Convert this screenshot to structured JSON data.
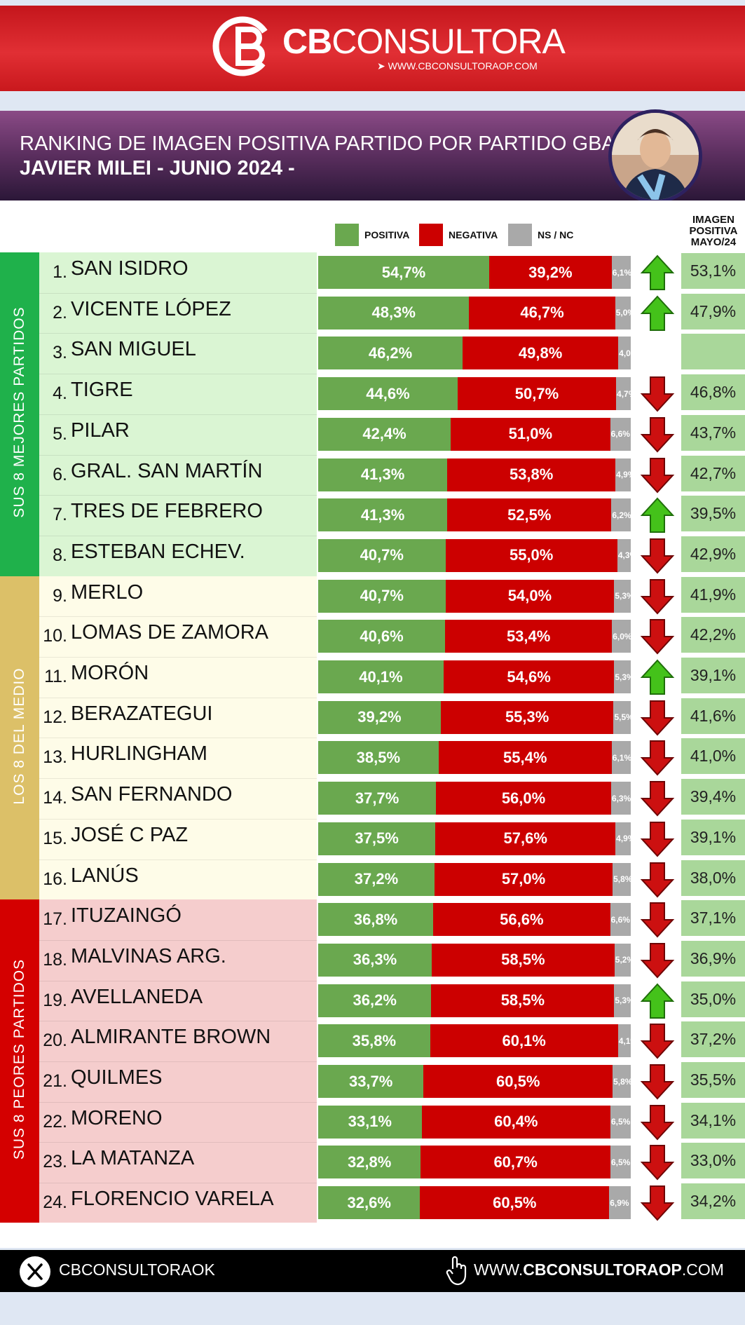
{
  "brand": {
    "logo_cb": "CB",
    "logo_name": "CONSULTORA",
    "url": "WWW.CBCONSULTORAOP.COM",
    "primary_color": "#d62027"
  },
  "title": {
    "line1": "RANKING DE IMAGEN POSITIVA PARTIDO POR PARTIDO GBA",
    "line2": "JAVIER MILEI - JUNIO 2024 -"
  },
  "legend": {
    "positive": "POSITIVA",
    "negative": "NEGATIVA",
    "ns": "NS / NC"
  },
  "may_column_header": [
    "IMAGEN",
    "POSITIVA",
    "MAYO/24"
  ],
  "groups": [
    {
      "label": "SUS 8 MEJORES PARTIDOS",
      "color": "#1fb14b",
      "fill": "#daf5d3"
    },
    {
      "label": "LOS 8 DEL MEDIO",
      "color": "#dcc068",
      "fill": "#fefce8"
    },
    {
      "label": "SUS 8 PEORES PARTIDOS",
      "color": "#d40000",
      "fill": "#f5cdcd"
    }
  ],
  "chart_data": {
    "type": "bar",
    "stacked": true,
    "orientation": "horizontal",
    "title": "RANKING DE IMAGEN POSITIVA PARTIDO POR PARTIDO GBA",
    "series": [
      {
        "name": "POSITIVA",
        "color": "#6aa84f"
      },
      {
        "name": "NEGATIVA",
        "color": "#cc0000"
      },
      {
        "name": "NS / NC",
        "color": "#a9a9a9"
      }
    ],
    "rows": [
      {
        "rank": "1.",
        "name": "SAN ISIDRO",
        "pos": 54.7,
        "neg": 39.2,
        "ns": 6.1,
        "pos_label": "54,7%",
        "neg_label": "39,2%",
        "ns_label": "6,1%",
        "trend": "up",
        "may": "53,1%"
      },
      {
        "rank": "2.",
        "name": "VICENTE LÓPEZ",
        "pos": 48.3,
        "neg": 46.7,
        "ns": 5.0,
        "pos_label": "48,3%",
        "neg_label": "46,7%",
        "ns_label": "5,0%",
        "trend": "up",
        "may": "47,9%"
      },
      {
        "rank": "3.",
        "name": "SAN MIGUEL",
        "pos": 46.2,
        "neg": 49.8,
        "ns": 4.0,
        "pos_label": "46,2%",
        "neg_label": "49,8%",
        "ns_label": "4,0%",
        "trend": "none",
        "may": ""
      },
      {
        "rank": "4.",
        "name": "TIGRE",
        "pos": 44.6,
        "neg": 50.7,
        "ns": 4.7,
        "pos_label": "44,6%",
        "neg_label": "50,7%",
        "ns_label": "4,7%",
        "trend": "down",
        "may": "46,8%"
      },
      {
        "rank": "5.",
        "name": "PILAR",
        "pos": 42.4,
        "neg": 51.0,
        "ns": 6.6,
        "pos_label": "42,4%",
        "neg_label": "51,0%",
        "ns_label": "6,6%",
        "trend": "down",
        "may": "43,7%"
      },
      {
        "rank": "6.",
        "name": "GRAL. SAN MARTÍN",
        "pos": 41.3,
        "neg": 53.8,
        "ns": 4.9,
        "pos_label": "41,3%",
        "neg_label": "53,8%",
        "ns_label": "4,9%",
        "trend": "down",
        "may": "42,7%"
      },
      {
        "rank": "7.",
        "name": "TRES DE FEBRERO",
        "pos": 41.3,
        "neg": 52.5,
        "ns": 6.2,
        "pos_label": "41,3%",
        "neg_label": "52,5%",
        "ns_label": "6,2%",
        "trend": "up",
        "may": "39,5%"
      },
      {
        "rank": "8.",
        "name": "ESTEBAN ECHEV.",
        "pos": 40.7,
        "neg": 55.0,
        "ns": 4.3,
        "pos_label": "40,7%",
        "neg_label": "55,0%",
        "ns_label": "4,3%",
        "trend": "down",
        "may": "42,9%"
      },
      {
        "rank": "9.",
        "name": "MERLO",
        "pos": 40.7,
        "neg": 54.0,
        "ns": 5.3,
        "pos_label": "40,7%",
        "neg_label": "54,0%",
        "ns_label": "5,3%",
        "trend": "down",
        "may": "41,9%"
      },
      {
        "rank": "10.",
        "name": "LOMAS DE ZAMORA",
        "pos": 40.6,
        "neg": 53.4,
        "ns": 6.0,
        "pos_label": "40,6%",
        "neg_label": "53,4%",
        "ns_label": "6,0%",
        "trend": "down",
        "may": "42,2%"
      },
      {
        "rank": "11.",
        "name": "MORÓN",
        "pos": 40.1,
        "neg": 54.6,
        "ns": 5.3,
        "pos_label": "40,1%",
        "neg_label": "54,6%",
        "ns_label": "5,3%",
        "trend": "up",
        "may": "39,1%"
      },
      {
        "rank": "12.",
        "name": "BERAZATEGUI",
        "pos": 39.2,
        "neg": 55.3,
        "ns": 5.5,
        "pos_label": "39,2%",
        "neg_label": "55,3%",
        "ns_label": "5,5%",
        "trend": "down",
        "may": "41,6%"
      },
      {
        "rank": "13.",
        "name": "HURLINGHAM",
        "pos": 38.5,
        "neg": 55.4,
        "ns": 6.1,
        "pos_label": "38,5%",
        "neg_label": "55,4%",
        "ns_label": "6,1%",
        "trend": "down",
        "may": "41,0%"
      },
      {
        "rank": "14.",
        "name": "SAN FERNANDO",
        "pos": 37.7,
        "neg": 56.0,
        "ns": 6.3,
        "pos_label": "37,7%",
        "neg_label": "56,0%",
        "ns_label": "6,3%",
        "trend": "down",
        "may": "39,4%"
      },
      {
        "rank": "15.",
        "name": "JOSÉ C PAZ",
        "pos": 37.5,
        "neg": 57.6,
        "ns": 4.9,
        "pos_label": "37,5%",
        "neg_label": "57,6%",
        "ns_label": "4,9%",
        "trend": "down",
        "may": "39,1%"
      },
      {
        "rank": "16.",
        "name": "LANÚS",
        "pos": 37.2,
        "neg": 57.0,
        "ns": 5.8,
        "pos_label": "37,2%",
        "neg_label": "57,0%",
        "ns_label": "5,8%",
        "trend": "down",
        "may": "38,0%"
      },
      {
        "rank": "17.",
        "name": "ITUZAINGÓ",
        "pos": 36.8,
        "neg": 56.6,
        "ns": 6.6,
        "pos_label": "36,8%",
        "neg_label": "56,6%",
        "ns_label": "6,6%",
        "trend": "down",
        "may": "37,1%"
      },
      {
        "rank": "18.",
        "name": "MALVINAS ARG.",
        "pos": 36.3,
        "neg": 58.5,
        "ns": 5.2,
        "pos_label": "36,3%",
        "neg_label": "58,5%",
        "ns_label": "5,2%",
        "trend": "down",
        "may": "36,9%"
      },
      {
        "rank": "19.",
        "name": "AVELLANEDA",
        "pos": 36.2,
        "neg": 58.5,
        "ns": 5.3,
        "pos_label": "36,2%",
        "neg_label": "58,5%",
        "ns_label": "5,3%",
        "trend": "up",
        "may": "35,0%"
      },
      {
        "rank": "20.",
        "name": "ALMIRANTE BROWN",
        "pos": 35.8,
        "neg": 60.1,
        "ns": 4.1,
        "pos_label": "35,8%",
        "neg_label": "60,1%",
        "ns_label": "4,1%",
        "trend": "down",
        "may": "37,2%"
      },
      {
        "rank": "21.",
        "name": "QUILMES",
        "pos": 33.7,
        "neg": 60.5,
        "ns": 5.8,
        "pos_label": "33,7%",
        "neg_label": "60,5%",
        "ns_label": "5,8%",
        "trend": "down",
        "may": "35,5%"
      },
      {
        "rank": "22.",
        "name": "MORENO",
        "pos": 33.1,
        "neg": 60.4,
        "ns": 6.5,
        "pos_label": "33,1%",
        "neg_label": "60,4%",
        "ns_label": "6,5%",
        "trend": "down",
        "may": "34,1%"
      },
      {
        "rank": "23.",
        "name": "LA MATANZA",
        "pos": 32.8,
        "neg": 60.7,
        "ns": 6.5,
        "pos_label": "32,8%",
        "neg_label": "60,7%",
        "ns_label": "6,5%",
        "trend": "down",
        "may": "33,0%"
      },
      {
        "rank": "24.",
        "name": "FLORENCIO VARELA",
        "pos": 32.6,
        "neg": 60.5,
        "ns": 6.9,
        "pos_label": "32,6%",
        "neg_label": "60,5%",
        "ns_label": "6,9%",
        "trend": "down",
        "may": "34,2%"
      }
    ]
  },
  "footer": {
    "handle": "CBCONSULTORAOK",
    "url_prefix": "WWW.",
    "url_bold": "CBCONSULTORAOP",
    "url_suffix": ".COM",
    "icons": [
      "x-logo-icon",
      "pointer-hand-icon"
    ]
  }
}
